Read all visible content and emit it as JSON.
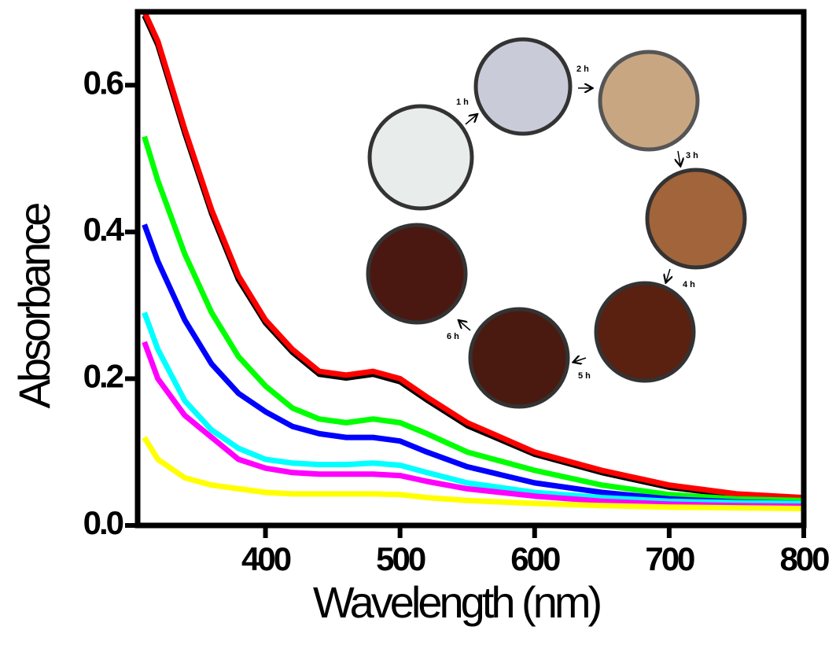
{
  "chart_data": {
    "type": "line",
    "x_label": "Wavelength (nm)",
    "y_label": "Absorbance",
    "x": [
      310,
      320,
      340,
      360,
      380,
      400,
      420,
      440,
      460,
      480,
      500,
      520,
      550,
      600,
      650,
      700,
      750,
      800
    ],
    "series": [
      {
        "color": "#000000",
        "values": [
          0.695,
          0.655,
          0.535,
          0.425,
          0.335,
          0.276,
          0.236,
          0.206,
          0.201,
          0.206,
          0.196,
          0.171,
          0.136,
          0.097,
          0.072,
          0.052,
          0.041,
          0.036
        ]
      },
      {
        "color": "#ff0000",
        "values": [
          0.7,
          0.66,
          0.54,
          0.43,
          0.34,
          0.28,
          0.24,
          0.21,
          0.205,
          0.21,
          0.2,
          0.175,
          0.14,
          0.1,
          0.075,
          0.055,
          0.043,
          0.038
        ]
      },
      {
        "color": "#00ff00",
        "values": [
          0.53,
          0.47,
          0.37,
          0.29,
          0.23,
          0.19,
          0.16,
          0.145,
          0.14,
          0.145,
          0.14,
          0.125,
          0.1,
          0.075,
          0.055,
          0.042,
          0.036,
          0.034
        ]
      },
      {
        "color": "#0000ff",
        "values": [
          0.41,
          0.36,
          0.28,
          0.22,
          0.18,
          0.155,
          0.135,
          0.125,
          0.12,
          0.12,
          0.115,
          0.1,
          0.08,
          0.058,
          0.045,
          0.036,
          0.032,
          0.03
        ]
      },
      {
        "color": "#00ffff",
        "values": [
          0.29,
          0.24,
          0.17,
          0.13,
          0.105,
          0.09,
          0.085,
          0.083,
          0.083,
          0.085,
          0.082,
          0.072,
          0.058,
          0.045,
          0.038,
          0.033,
          0.031,
          0.03
        ]
      },
      {
        "color": "#ff00ff",
        "values": [
          0.25,
          0.2,
          0.15,
          0.12,
          0.09,
          0.078,
          0.072,
          0.07,
          0.07,
          0.07,
          0.068,
          0.06,
          0.05,
          0.04,
          0.033,
          0.029,
          0.027,
          0.026
        ]
      },
      {
        "color": "#ffff00",
        "values": [
          0.12,
          0.09,
          0.065,
          0.055,
          0.05,
          0.045,
          0.043,
          0.043,
          0.043,
          0.043,
          0.042,
          0.038,
          0.034,
          0.03,
          0.027,
          0.025,
          0.024,
          0.023
        ]
      }
    ],
    "xlim": [
      305,
      800
    ],
    "xticks": [
      400,
      500,
      600,
      700,
      800
    ],
    "ylim": [
      0,
      0.7
    ],
    "yticks": [
      {
        "value": 0,
        "label": "0.0"
      },
      0.2,
      0.4,
      0.6
    ],
    "annotations": [
      "1 h",
      "2 h",
      "3 h",
      "4 h",
      "5 h",
      "6 h"
    ]
  }
}
